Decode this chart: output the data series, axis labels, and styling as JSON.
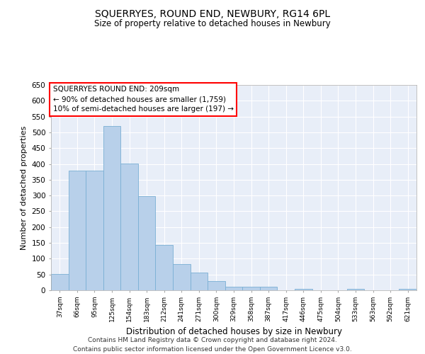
{
  "title": "SQUERRYES, ROUND END, NEWBURY, RG14 6PL",
  "subtitle": "Size of property relative to detached houses in Newbury",
  "xlabel": "Distribution of detached houses by size in Newbury",
  "ylabel": "Number of detached properties",
  "bar_color": "#b8d0ea",
  "bar_edge_color": "#7aafd4",
  "background_color": "#e8eef8",
  "grid_color": "#ffffff",
  "categories": [
    "37sqm",
    "66sqm",
    "95sqm",
    "125sqm",
    "154sqm",
    "183sqm",
    "212sqm",
    "241sqm",
    "271sqm",
    "300sqm",
    "329sqm",
    "358sqm",
    "387sqm",
    "417sqm",
    "446sqm",
    "475sqm",
    "504sqm",
    "533sqm",
    "563sqm",
    "592sqm",
    "621sqm"
  ],
  "values": [
    52,
    378,
    378,
    519,
    402,
    297,
    143,
    84,
    55,
    30,
    11,
    11,
    12,
    0,
    5,
    0,
    0,
    5,
    0,
    0,
    5
  ],
  "ylim": [
    0,
    650
  ],
  "yticks": [
    0,
    50,
    100,
    150,
    200,
    250,
    300,
    350,
    400,
    450,
    500,
    550,
    600,
    650
  ],
  "annotation_box_text": "SQUERRYES ROUND END: 209sqm\n← 90% of detached houses are smaller (1,759)\n10% of semi-detached houses are larger (197) →",
  "footer_line1": "Contains HM Land Registry data © Crown copyright and database right 2024.",
  "footer_line2": "Contains public sector information licensed under the Open Government Licence v3.0."
}
